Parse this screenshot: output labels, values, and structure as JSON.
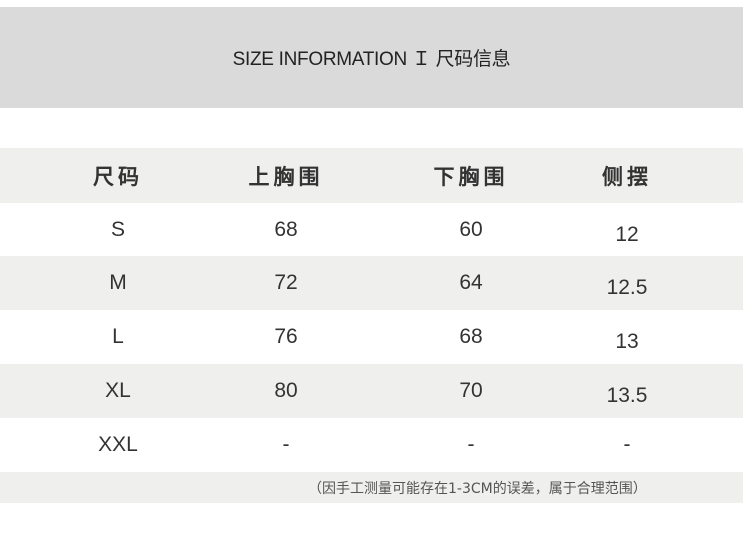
{
  "title": "SIZE INFORMATION Ｉ 尺码信息",
  "table": {
    "headers": [
      "尺码",
      "上胸围",
      "下胸围",
      "侧摆"
    ],
    "rows": [
      [
        "S",
        "68",
        "60",
        "12"
      ],
      [
        "M",
        "72",
        "64",
        "12.5"
      ],
      [
        "L",
        "76",
        "68",
        "13"
      ],
      [
        "XL",
        "80",
        "70",
        "13.5"
      ],
      [
        "XXL",
        "-",
        "-",
        "-"
      ]
    ]
  },
  "note": "（因手工测量可能存在1-3CM的误差，属于合理范围）"
}
